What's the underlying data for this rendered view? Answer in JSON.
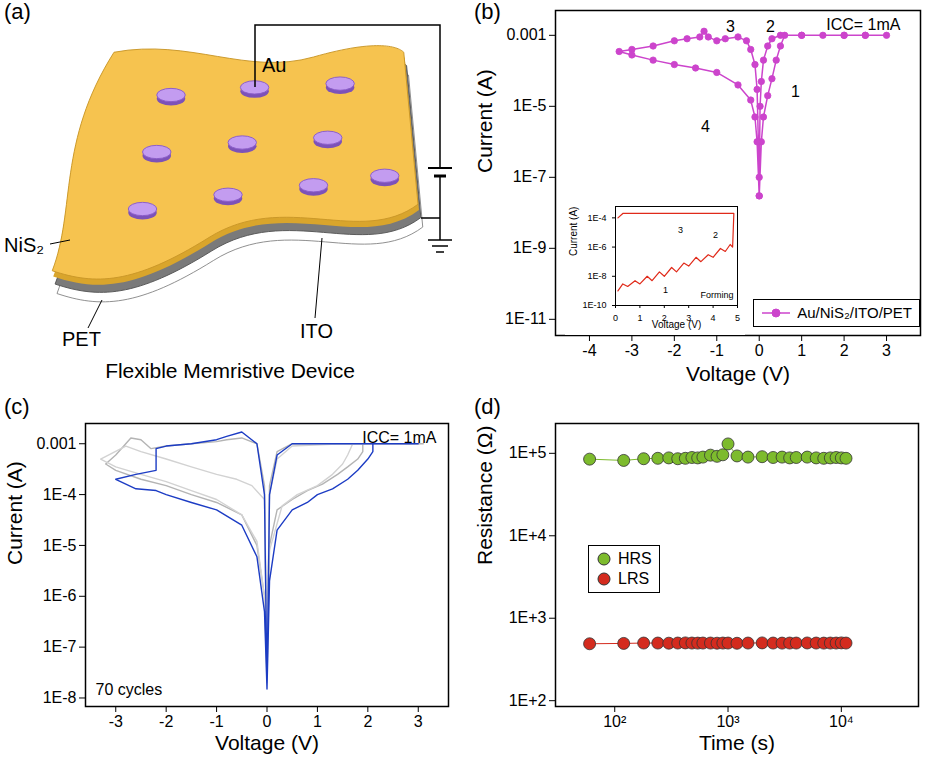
{
  "diagram": {
    "panel": "(a)",
    "labels": {
      "electrode": "Au",
      "film": "NiS₂",
      "substrate": "PET",
      "bottom_electrode": "ITO"
    },
    "caption": "Flexible Memristive Device"
  },
  "chart_data": [
    {
      "panel": "(b)",
      "type": "line",
      "xlabel": "Voltage (V)",
      "ylabel": "Current (A)",
      "log": "y",
      "xlim": [
        -4.8,
        3.8
      ],
      "xticks": [
        -4,
        -3,
        -2,
        -1,
        0,
        1,
        2,
        3
      ],
      "ylim": [
        3.5e-12,
        0.005
      ],
      "yticks": [
        {
          "value": 1e-11,
          "label": "1E-11"
        },
        {
          "value": 1e-09,
          "label": "1E-9"
        },
        {
          "value": 1e-07,
          "label": "1E-7"
        },
        {
          "value": 1e-05,
          "label": "1E-5"
        },
        0.001
      ],
      "legend": "bottom-right",
      "annotations": [
        "ICC= 1mA",
        "1",
        "2",
        "3",
        "4"
      ],
      "series": [
        {
          "name": "Au/NiS₂/ITO/PET",
          "color": "#cc44cc",
          "marker": "circle",
          "x": [
            0,
            0.05,
            0.1,
            0.2,
            0.3,
            0.4,
            0.5,
            0.6,
            1,
            1.5,
            2,
            2.5,
            3,
            2.5,
            2,
            1,
            0.5,
            0.3,
            0.2,
            0.1,
            0.05,
            0.02,
            0,
            -0.05,
            -0.1,
            -0.2,
            -0.3,
            -0.5,
            -0.8,
            -1,
            -1.2,
            -1.3,
            -1.4,
            -1.7,
            -2,
            -2.5,
            -3,
            -3.3,
            -3,
            -2.5,
            -2,
            -1.5,
            -1,
            -0.5,
            -0.2,
            -0.1,
            -0.05,
            0
          ],
          "values": [
            3e-08,
            1e-06,
            5e-06,
            2e-05,
            6e-05,
            0.0002,
            0.0005,
            0.001,
            0.001,
            0.001,
            0.001,
            0.001,
            0.001,
            0.001,
            0.001,
            0.001,
            0.001,
            0.0008,
            0.0005,
            0.0002,
            5e-05,
            1e-05,
            1e-07,
            3e-05,
            0.00015,
            0.0004,
            0.0007,
            0.0009,
            0.0008,
            0.0007,
            0.0009,
            0.0013,
            0.0009,
            0.0008,
            0.0007,
            0.0005,
            0.0004,
            0.00035,
            0.00028,
            0.0002,
            0.00015,
            0.00012,
            9e-05,
            4e-05,
            1.5e-05,
            5e-06,
            1e-06,
            3e-08
          ]
        }
      ],
      "inset": {
        "type": "line",
        "xlabel": "Voltage (V)",
        "ylabel": "Current (A)",
        "log": "y",
        "xlim": [
          0,
          5
        ],
        "xticks": [
          0,
          1,
          2,
          3,
          4,
          5
        ],
        "ylim": [
          1e-10,
          0.0006
        ],
        "yticks": [
          {
            "value": 1e-10,
            "label": "1E-10"
          },
          {
            "value": 1e-08,
            "label": "1E-8"
          },
          {
            "value": 1e-06,
            "label": "1E-6"
          },
          {
            "value": 0.0001,
            "label": "1E-4"
          }
        ],
        "annotations": [
          "Forming",
          "1",
          "2",
          "3"
        ],
        "series": [
          {
            "color": "#e02a1a",
            "x": [
              0.1,
              0.3,
              0.5,
              0.8,
              1,
              1.3,
              1.5,
              1.8,
              2,
              2.3,
              2.5,
              2.8,
              3,
              3.3,
              3.5,
              3.8,
              4,
              4.3,
              4.5,
              4.7,
              4.8,
              4.85,
              4,
              3,
              2,
              1,
              0.3,
              0.1
            ],
            "values": [
              1e-09,
              3e-09,
              2e-09,
              5e-09,
              3e-09,
              1e-08,
              5e-09,
              2e-08,
              1e-08,
              4e-08,
              2e-08,
              8e-08,
              5e-08,
              2e-07,
              1e-07,
              3e-07,
              2e-07,
              8e-07,
              5e-07,
              1.5e-06,
              1e-06,
              0.0002,
              0.0002,
              0.0002,
              0.0002,
              0.0002,
              0.0002,
              0.0001
            ]
          }
        ]
      }
    },
    {
      "panel": "(c)",
      "type": "line",
      "xlabel": "Voltage (V)",
      "ylabel": "Current (A)",
      "log": "y",
      "xlim": [
        -3.6,
        3.6
      ],
      "xticks": [
        -3,
        -2,
        -1,
        0,
        1,
        2,
        3
      ],
      "ylim": [
        6.8e-09,
        0.0025
      ],
      "yticks": [
        {
          "value": 1e-08,
          "label": "1E-8"
        },
        {
          "value": 1e-07,
          "label": "1E-7"
        },
        {
          "value": 1e-06,
          "label": "1E-6"
        },
        {
          "value": 1e-05,
          "label": "1E-5"
        },
        {
          "value": 0.0001,
          "label": "1E-4"
        },
        0.001
      ],
      "annotations": [
        "ICC= 1mA",
        "70 cycles"
      ],
      "series": [
        {
          "color": "#b4b4b4",
          "x": [
            0,
            0.05,
            0.2,
            0.5,
            0.8,
            1.1,
            1.4,
            1.6,
            1.8,
            1.9,
            1.9,
            3.1,
            2,
            1,
            0.5,
            0.2,
            0.05,
            0,
            -0.05,
            -0.2,
            -0.5,
            -0.8,
            -1,
            -1.5,
            -2,
            -2.3,
            -2.5,
            -2.7,
            -3,
            -3.2,
            -3,
            -2.5,
            -2,
            -1.5,
            -1,
            -0.5,
            -0.2,
            -0.05,
            0
          ],
          "values": [
            3e-08,
            1e-05,
            5e-05,
            8e-05,
            0.00012,
            0.00016,
            0.00025,
            0.00035,
            0.0005,
            0.0007,
            0.001,
            0.001,
            0.001,
            0.001,
            0.001,
            0.0007,
            0.00015,
            3e-08,
            0.00015,
            0.001,
            0.0013,
            0.0012,
            0.0011,
            0.001,
            0.0009,
            0.0008,
            0.0012,
            0.0013,
            0.0006,
            0.0004,
            0.0003,
            0.0002,
            0.00015,
            0.0001,
            7e-05,
            4e-05,
            1e-05,
            1e-06,
            3e-08
          ]
        },
        {
          "color": "#d2d2d2",
          "x": [
            0,
            0.05,
            0.3,
            0.6,
            1,
            1.3,
            1.5,
            1.6,
            1.7,
            3,
            1.5,
            0.5,
            0.2,
            0.05,
            0,
            -0.05,
            -0.3,
            -0.6,
            -1,
            -1.5,
            -2,
            -2.5,
            -2.8,
            -3.3,
            -3,
            -2.5,
            -2,
            -1.5,
            -1,
            -0.5,
            -0.2,
            -0.05,
            0
          ],
          "values": [
            2e-08,
            8e-06,
            6e-05,
            0.0001,
            0.00015,
            0.00025,
            0.0004,
            0.0006,
            0.001,
            0.001,
            0.001,
            0.0009,
            0.0005,
            0.0001,
            2e-08,
            8e-05,
            0.00015,
            0.0002,
            0.00025,
            0.00035,
            0.0005,
            0.0007,
            0.0009,
            0.0005,
            0.00035,
            0.00025,
            0.00018,
            0.00012,
            8e-05,
            4e-05,
            1.2e-05,
            1e-06,
            2e-08
          ]
        },
        {
          "color": "#1c3cc4",
          "x": [
            0,
            0.05,
            0.2,
            0.5,
            0.8,
            1,
            1.3,
            1.6,
            1.8,
            2,
            2.1,
            2.1,
            3,
            2,
            1,
            0.5,
            0.2,
            0.05,
            0,
            -0.05,
            -0.2,
            -0.5,
            -0.8,
            -1,
            -1.5,
            -2,
            -2.2,
            -2.2,
            -2.6,
            -3,
            -2.6,
            -2.2,
            -2,
            -1.5,
            -1,
            -0.5,
            -0.2,
            -0.05,
            0
          ],
          "values": [
            1.5e-08,
            2e-06,
            2e-05,
            5e-05,
            7e-05,
            0.0001,
            0.00013,
            0.0002,
            0.0003,
            0.0005,
            0.0007,
            0.001,
            0.001,
            0.001,
            0.001,
            0.001,
            0.0006,
            0.0001,
            1.5e-08,
            0.0001,
            0.001,
            0.0017,
            0.0014,
            0.0012,
            0.001,
            0.0009,
            0.0008,
            0.0003,
            0.00025,
            0.0002,
            0.00013,
            0.00012,
            0.0001,
            7e-05,
            5e-05,
            2.5e-05,
            6e-06,
            5e-07,
            1.5e-08
          ]
        }
      ]
    },
    {
      "panel": "(d)",
      "type": "line",
      "marker": "circle",
      "xlabel": "Time (s)",
      "ylabel": "Resistance (Ω)",
      "log": true,
      "xlim": [
        30,
        48000
      ],
      "xticks": [
        {
          "value": 100,
          "label": "10²"
        },
        {
          "value": 1000,
          "label": "10³"
        },
        {
          "value": 10000,
          "label": "10⁴"
        }
      ],
      "ylim": [
        85,
        230000
      ],
      "yticks": [
        {
          "value": 100,
          "label": "1E+2"
        },
        {
          "value": 1000,
          "label": "1E+3"
        },
        {
          "value": 10000,
          "label": "1E+4"
        },
        {
          "value": 100000,
          "label": "1E+5"
        }
      ],
      "legend": "left",
      "x": [
        60,
        120,
        180,
        240,
        300,
        360,
        420,
        480,
        540,
        600,
        700,
        800,
        900,
        1000,
        1200,
        1500,
        2000,
        2500,
        3000,
        3500,
        4000,
        5000,
        6000,
        7000,
        8000,
        9000,
        10000,
        11000
      ],
      "series": [
        {
          "name": "HRS",
          "color": "#7dbb2d",
          "values": [
            85000,
            82000,
            86000,
            87000,
            88000,
            86000,
            87000,
            89000,
            88000,
            90000,
            95000,
            92000,
            96000,
            130000,
            93000,
            90000,
            91000,
            89000,
            90000,
            88000,
            89000,
            90000,
            88000,
            87000,
            88000,
            89000,
            88000,
            87000
          ]
        },
        {
          "name": "LRS",
          "color": "#d42b1e",
          "values": [
            490,
            495,
            500,
            500,
            498,
            500,
            502,
            500,
            499,
            500,
            500,
            498,
            500,
            500,
            497,
            500,
            502,
            500,
            499,
            500,
            500,
            501,
            500,
            499,
            500,
            500,
            502,
            500
          ]
        }
      ]
    }
  ]
}
